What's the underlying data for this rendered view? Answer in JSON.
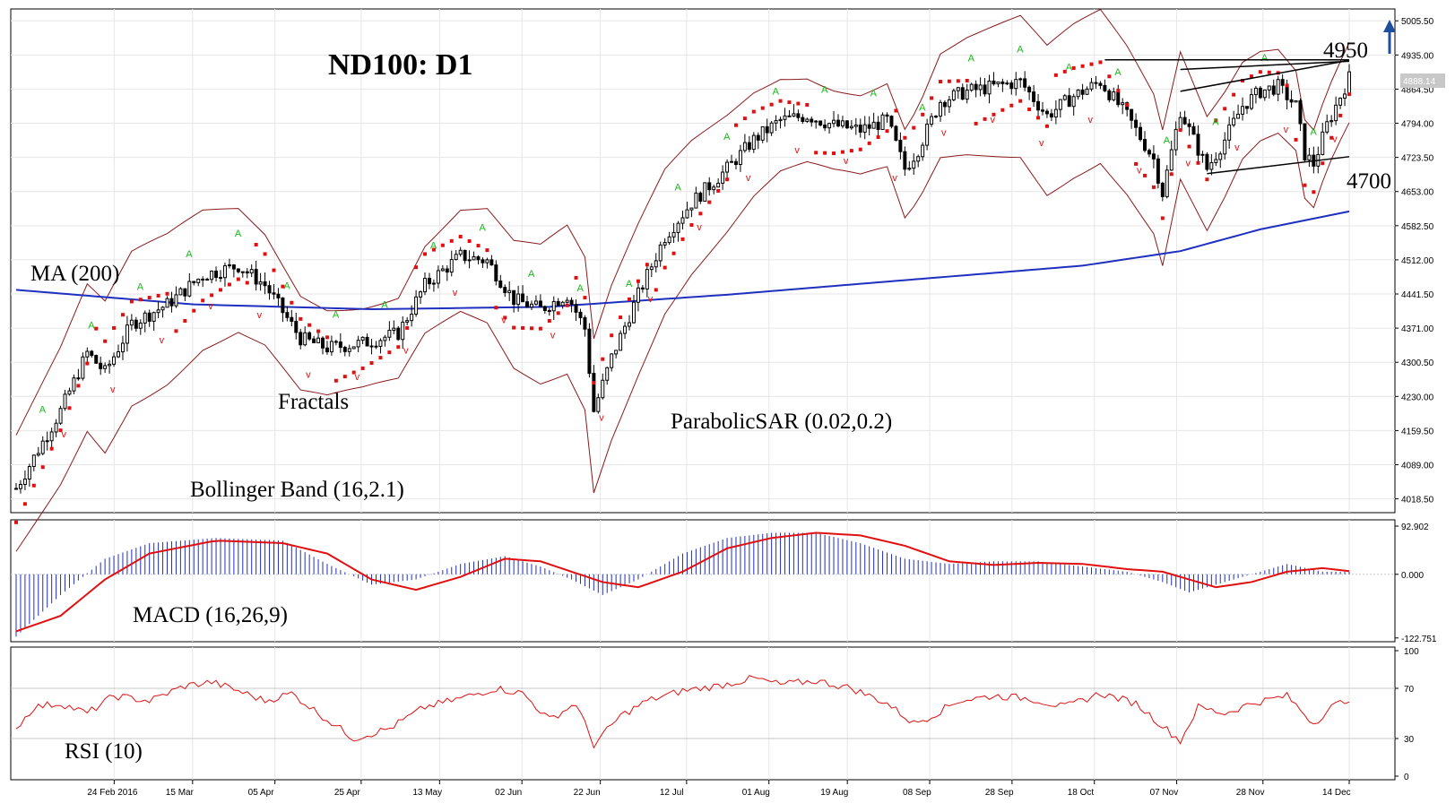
{
  "chart_data": {
    "type": "candlestick",
    "title": "ND100: D1",
    "instrument": "ND100",
    "timeframe": "D1",
    "current_price": "4888.14",
    "labels": {
      "ma": "MA (200)",
      "fractals": "Fractals",
      "bollinger": "Bollinger Band (16,2.1)",
      "sar": "ParabolicSAR (0.02,0.2)",
      "macd": "MACD (16,26,9)",
      "rsi": "RSI (10)",
      "resistance": "4950",
      "support": "4700"
    },
    "price_axis": {
      "ylim": [
        3990,
        5030
      ],
      "ticks": [
        "5005.50",
        "4935.00",
        "4864.50",
        "4794.00",
        "4723.50",
        "4653.00",
        "4582.50",
        "4512.00",
        "4441.50",
        "4371.00",
        "4300.50",
        "4230.00",
        "4159.50",
        "4089.00",
        "4018.50"
      ]
    },
    "macd_axis": {
      "ylim": [
        -130,
        105
      ],
      "ticks": [
        "92.902",
        "0.000",
        "-122.751"
      ]
    },
    "rsi_axis": {
      "ylim": [
        0,
        100
      ],
      "ticks": [
        "100",
        "70",
        "30",
        "0"
      ]
    },
    "x_axis": {
      "ticks": [
        "24 Feb 2016",
        "15 Mar",
        "05 Apr",
        "25 Apr",
        "13 May",
        "02 Jun",
        "22 Jun",
        "12 Jul",
        "01 Aug",
        "19 Aug",
        "08 Sep",
        "28 Sep",
        "18 Oct",
        "07 Nov",
        "28 Nov",
        "14 Dec"
      ]
    },
    "price_series": [
      {
        "day": 0,
        "close": 4040
      },
      {
        "day": 10,
        "close": 4200
      },
      {
        "day": 16,
        "close": 4320
      },
      {
        "day": 20,
        "close": 4280
      },
      {
        "day": 26,
        "close": 4380
      },
      {
        "day": 34,
        "close": 4420
      },
      {
        "day": 42,
        "close": 4480
      },
      {
        "day": 50,
        "close": 4500
      },
      {
        "day": 56,
        "close": 4460
      },
      {
        "day": 64,
        "close": 4350
      },
      {
        "day": 70,
        "close": 4330
      },
      {
        "day": 78,
        "close": 4340
      },
      {
        "day": 86,
        "close": 4360
      },
      {
        "day": 92,
        "close": 4460
      },
      {
        "day": 100,
        "close": 4520
      },
      {
        "day": 106,
        "close": 4510
      },
      {
        "day": 112,
        "close": 4430
      },
      {
        "day": 118,
        "close": 4410
      },
      {
        "day": 124,
        "close": 4440
      },
      {
        "day": 128,
        "close": 4370
      },
      {
        "day": 130,
        "close": 4200
      },
      {
        "day": 134,
        "close": 4310
      },
      {
        "day": 140,
        "close": 4440
      },
      {
        "day": 146,
        "close": 4560
      },
      {
        "day": 152,
        "close": 4630
      },
      {
        "day": 160,
        "close": 4700
      },
      {
        "day": 166,
        "close": 4760
      },
      {
        "day": 172,
        "close": 4800
      },
      {
        "day": 178,
        "close": 4810
      },
      {
        "day": 184,
        "close": 4790
      },
      {
        "day": 190,
        "close": 4780
      },
      {
        "day": 196,
        "close": 4800
      },
      {
        "day": 200,
        "close": 4700
      },
      {
        "day": 203,
        "close": 4740
      },
      {
        "day": 208,
        "close": 4840
      },
      {
        "day": 214,
        "close": 4860
      },
      {
        "day": 220,
        "close": 4870
      },
      {
        "day": 226,
        "close": 4880
      },
      {
        "day": 232,
        "close": 4810
      },
      {
        "day": 238,
        "close": 4850
      },
      {
        "day": 244,
        "close": 4880
      },
      {
        "day": 250,
        "close": 4810
      },
      {
        "day": 256,
        "close": 4720
      },
      {
        "day": 258,
        "close": 4650
      },
      {
        "day": 262,
        "close": 4820
      },
      {
        "day": 264,
        "close": 4780
      },
      {
        "day": 268,
        "close": 4700
      },
      {
        "day": 272,
        "close": 4760
      },
      {
        "day": 276,
        "close": 4830
      },
      {
        "day": 280,
        "close": 4860
      },
      {
        "day": 284,
        "close": 4870
      },
      {
        "day": 288,
        "close": 4830
      },
      {
        "day": 290,
        "close": 4730
      },
      {
        "day": 292,
        "close": 4710
      },
      {
        "day": 295,
        "close": 4790
      },
      {
        "day": 298,
        "close": 4850
      },
      {
        "day": 300,
        "close": 4888
      }
    ],
    "ma200": [
      {
        "day": 0,
        "value": 4450
      },
      {
        "day": 40,
        "value": 4420
      },
      {
        "day": 80,
        "value": 4410
      },
      {
        "day": 120,
        "value": 4415
      },
      {
        "day": 160,
        "value": 4440
      },
      {
        "day": 200,
        "value": 4470
      },
      {
        "day": 240,
        "value": 4500
      },
      {
        "day": 262,
        "value": 4530
      },
      {
        "day": 280,
        "value": 4575
      },
      {
        "day": 300,
        "value": 4612
      }
    ],
    "macd": [
      {
        "day": 0,
        "hist": -120,
        "signal": -110
      },
      {
        "day": 10,
        "hist": -40,
        "signal": -80
      },
      {
        "day": 20,
        "hist": 30,
        "signal": -10
      },
      {
        "day": 30,
        "hist": 60,
        "signal": 40
      },
      {
        "day": 45,
        "hist": 70,
        "signal": 65
      },
      {
        "day": 60,
        "hist": 65,
        "signal": 60
      },
      {
        "day": 70,
        "hist": 20,
        "signal": 40
      },
      {
        "day": 80,
        "hist": -20,
        "signal": -10
      },
      {
        "day": 90,
        "hist": -10,
        "signal": -30
      },
      {
        "day": 100,
        "hist": 20,
        "signal": -5
      },
      {
        "day": 110,
        "hist": 35,
        "signal": 30
      },
      {
        "day": 118,
        "hist": 15,
        "signal": 25
      },
      {
        "day": 125,
        "hist": -10,
        "signal": 5
      },
      {
        "day": 132,
        "hist": -40,
        "signal": -15
      },
      {
        "day": 140,
        "hist": -10,
        "signal": -25
      },
      {
        "day": 150,
        "hist": 40,
        "signal": 5
      },
      {
        "day": 160,
        "hist": 70,
        "signal": 50
      },
      {
        "day": 170,
        "hist": 80,
        "signal": 70
      },
      {
        "day": 180,
        "hist": 80,
        "signal": 80
      },
      {
        "day": 190,
        "hist": 60,
        "signal": 75
      },
      {
        "day": 200,
        "hist": 30,
        "signal": 55
      },
      {
        "day": 210,
        "hist": 20,
        "signal": 25
      },
      {
        "day": 220,
        "hist": 25,
        "signal": 18
      },
      {
        "day": 230,
        "hist": 25,
        "signal": 22
      },
      {
        "day": 240,
        "hist": 15,
        "signal": 20
      },
      {
        "day": 250,
        "hist": 5,
        "signal": 10
      },
      {
        "day": 258,
        "hist": -15,
        "signal": 5
      },
      {
        "day": 264,
        "hist": -35,
        "signal": -10
      },
      {
        "day": 270,
        "hist": -20,
        "signal": -25
      },
      {
        "day": 278,
        "hist": 0,
        "signal": -15
      },
      {
        "day": 286,
        "hist": 20,
        "signal": 5
      },
      {
        "day": 294,
        "hist": 5,
        "signal": 12
      },
      {
        "day": 300,
        "hist": 5,
        "signal": 6
      }
    ],
    "rsi": [
      {
        "day": 0,
        "value": 38
      },
      {
        "day": 4,
        "value": 55
      },
      {
        "day": 10,
        "value": 58
      },
      {
        "day": 16,
        "value": 50
      },
      {
        "day": 22,
        "value": 64
      },
      {
        "day": 30,
        "value": 60
      },
      {
        "day": 38,
        "value": 72
      },
      {
        "day": 44,
        "value": 75
      },
      {
        "day": 50,
        "value": 68
      },
      {
        "day": 56,
        "value": 60
      },
      {
        "day": 62,
        "value": 66
      },
      {
        "day": 70,
        "value": 45
      },
      {
        "day": 76,
        "value": 30
      },
      {
        "day": 84,
        "value": 38
      },
      {
        "day": 92,
        "value": 55
      },
      {
        "day": 100,
        "value": 62
      },
      {
        "day": 108,
        "value": 70
      },
      {
        "day": 114,
        "value": 66
      },
      {
        "day": 120,
        "value": 45
      },
      {
        "day": 126,
        "value": 58
      },
      {
        "day": 130,
        "value": 25
      },
      {
        "day": 136,
        "value": 48
      },
      {
        "day": 142,
        "value": 60
      },
      {
        "day": 150,
        "value": 68
      },
      {
        "day": 158,
        "value": 72
      },
      {
        "day": 166,
        "value": 78
      },
      {
        "day": 172,
        "value": 73
      },
      {
        "day": 180,
        "value": 76
      },
      {
        "day": 188,
        "value": 70
      },
      {
        "day": 196,
        "value": 58
      },
      {
        "day": 202,
        "value": 42
      },
      {
        "day": 206,
        "value": 48
      },
      {
        "day": 212,
        "value": 60
      },
      {
        "day": 220,
        "value": 64
      },
      {
        "day": 228,
        "value": 62
      },
      {
        "day": 236,
        "value": 55
      },
      {
        "day": 244,
        "value": 66
      },
      {
        "day": 252,
        "value": 58
      },
      {
        "day": 258,
        "value": 40
      },
      {
        "day": 262,
        "value": 28
      },
      {
        "day": 266,
        "value": 55
      },
      {
        "day": 272,
        "value": 50
      },
      {
        "day": 278,
        "value": 58
      },
      {
        "day": 286,
        "value": 64
      },
      {
        "day": 292,
        "value": 42
      },
      {
        "day": 296,
        "value": 55
      },
      {
        "day": 300,
        "value": 62
      }
    ]
  }
}
